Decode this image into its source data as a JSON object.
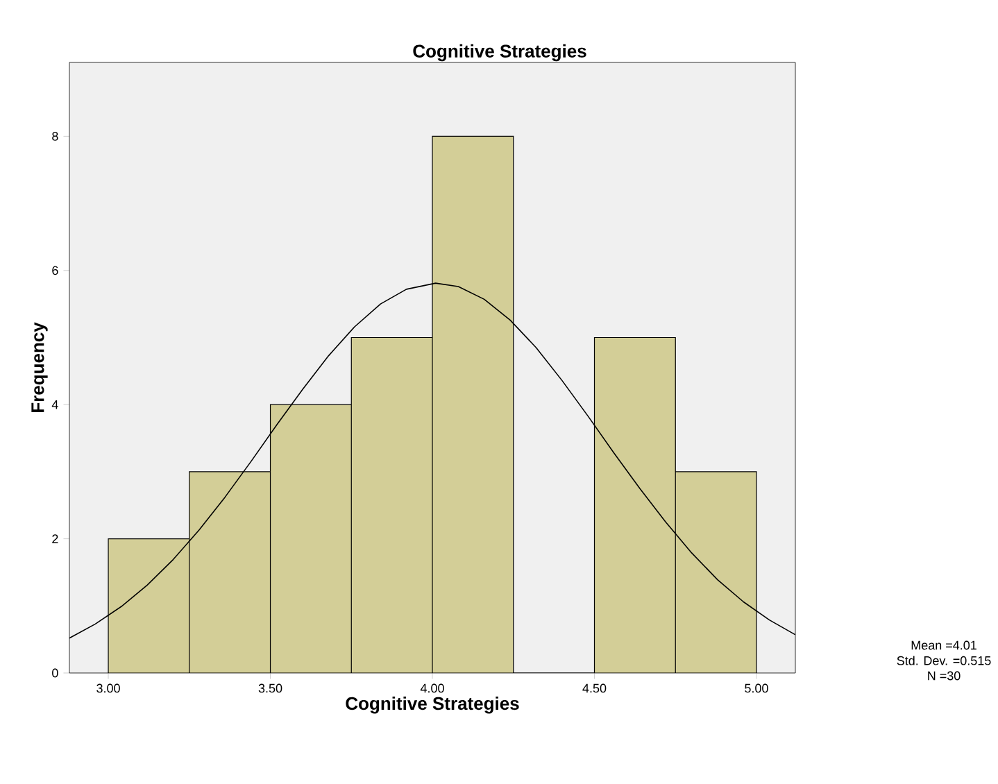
{
  "chart_data": {
    "type": "histogram",
    "title": "Cognitive Strategies",
    "xlabel": "Cognitive Strategies",
    "ylabel": "Frequency",
    "bins": [
      3.0,
      3.25,
      3.5,
      3.75,
      4.0,
      4.25,
      4.5,
      4.75,
      5.0
    ],
    "values": [
      2,
      3,
      4,
      5,
      8,
      0,
      5,
      3
    ],
    "color": "#d3ce97",
    "series": [
      {
        "type": "line",
        "color": "#000000",
        "x": [
          2.88,
          2.96,
          3.04,
          3.12,
          3.2,
          3.28,
          3.36,
          3.44,
          3.52,
          3.6,
          3.68,
          3.76,
          3.84,
          3.92,
          4.01,
          4.08,
          4.16,
          4.24,
          4.32,
          4.4,
          4.48,
          4.56,
          4.64,
          4.72,
          4.8,
          4.88,
          4.96,
          5.04,
          5.12
        ],
        "values": [
          0.52,
          0.73,
          0.99,
          1.31,
          1.69,
          2.13,
          2.62,
          3.15,
          3.7,
          4.23,
          4.73,
          5.16,
          5.5,
          5.72,
          5.81,
          5.76,
          5.57,
          5.26,
          4.85,
          4.36,
          3.83,
          3.28,
          2.75,
          2.25,
          1.79,
          1.39,
          1.06,
          0.79,
          0.57
        ]
      }
    ],
    "xlim": [
      2.88,
      5.12
    ],
    "ylim": [
      0,
      9.1
    ],
    "xticks": [
      {
        "value": 3.0,
        "label": "3.00"
      },
      {
        "value": 3.5,
        "label": "3.50"
      },
      {
        "value": 4.0,
        "label": "4.00"
      },
      {
        "value": 4.5,
        "label": "4.50"
      },
      {
        "value": 5.0,
        "label": "5.00"
      }
    ],
    "yticks": [
      0,
      2,
      4,
      6,
      8
    ],
    "annotations": [
      "Mean =4.01",
      "Std. Dev. =0.515",
      "N =30"
    ]
  }
}
